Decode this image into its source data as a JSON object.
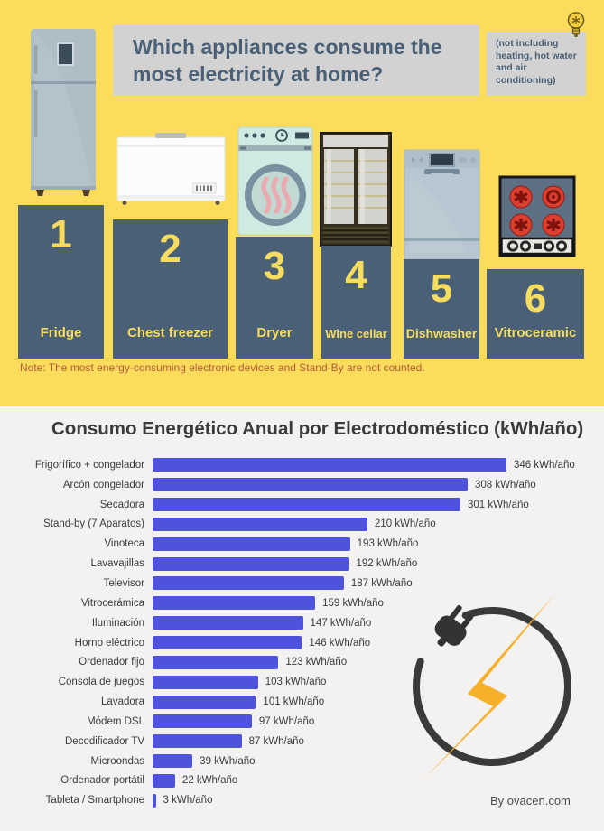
{
  "header": {
    "title": "Which appliances consume the most electricity at home?",
    "side_note": "(not including heating, hot water and air conditioning)"
  },
  "ranking": {
    "items": [
      {
        "rank": "1",
        "label": "Fridge"
      },
      {
        "rank": "2",
        "label": "Chest freezer"
      },
      {
        "rank": "3",
        "label": "Dryer"
      },
      {
        "rank": "4",
        "label": "Wine cellar"
      },
      {
        "rank": "5",
        "label": "Dishwasher"
      },
      {
        "rank": "6",
        "label": "Vitroceramic"
      }
    ],
    "note": "Note: The most energy-consuming electronic devices and Stand-By are not counted."
  },
  "chart_data": {
    "type": "bar",
    "orientation": "horizontal",
    "title": "Consumo Energético Anual por Electrodoméstico (kWh/año)",
    "unit": "kWh/año",
    "categories": [
      "Frigorífico + congelador",
      "Arcón congelador",
      "Secadora",
      "Stand-by (7 Aparatos)",
      "Vinoteca",
      "Lavavajillas",
      "Televisor",
      "Vitrocerámica",
      "Iluminación",
      "Horno eléctrico",
      "Ordenador fijo",
      "Consola de juegos",
      "Lavadora",
      "Módem DSL",
      "Decodificador TV",
      "Microondas",
      "Ordenador portátil",
      "Tableta / Smartphone"
    ],
    "values": [
      346,
      308,
      301,
      210,
      193,
      192,
      187,
      159,
      147,
      146,
      123,
      103,
      101,
      97,
      87,
      39,
      22,
      3
    ],
    "value_labels": [
      "346 kWh/año",
      "308 kWh/año",
      "301 kWh/año",
      "210 kWh/año",
      "193 kWh/año",
      "192 kWh/año",
      "187 kWh/año",
      "159 kWh/año",
      "147 kWh/año",
      "146 kWh/año",
      "123 kWh/año",
      "103 kWh/año",
      "101 kWh/año",
      "97 kWh/año",
      "87 kWh/año",
      "39 kWh/año",
      "22 kWh/año",
      "3 kWh/año"
    ],
    "xlim": [
      0,
      346
    ],
    "bar_color": "#4e52dc",
    "grid": false,
    "legend": false
  },
  "footer": {
    "credit": "By ovacen.com"
  },
  "colors": {
    "top_background": "#fcdd5b",
    "bottom_background": "#f4f2f0",
    "panel_grey": "#d2d2d2",
    "podium_slate": "#4a6076",
    "accent_yellow": "#f6dd5f",
    "bar_blue": "#4e52dc",
    "note_red": "#b3593b",
    "bolt_orange": "#f7b02a"
  },
  "icons": {
    "lightbulb-icon": "bulb glyph (yellow bulb, dark outline)",
    "power-plug-icon": "dark power plug shape",
    "lightning-bolt-icon": "yellow lightning bolt",
    "fridge-illustration": "top-freezer refrigerator",
    "chest-freezer-illustration": "white chest freezer",
    "dryer-illustration": "front-load dryer with heat waves",
    "wine-cellar-illustration": "double glass-door wine cabinet",
    "dishwasher-illustration": "freestanding dishwasher",
    "vitroceramic-illustration": "4-burner ceramic hob"
  }
}
